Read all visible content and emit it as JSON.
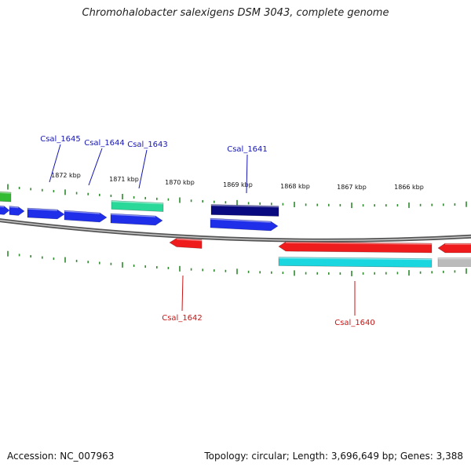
{
  "header": {
    "title": "Chromohalobacter salexigens DSM 3043, complete genome"
  },
  "footer": {
    "accession": "Accession: NC_007963",
    "summary": "Topology: circular; Length: 3,696,649 bp; Genes: 3,388"
  },
  "colors": {
    "backbone": "#8a8a8a",
    "tick": "#2e8b2e",
    "forward_cds": "#1f2ee8",
    "reverse_cds": "#ee1c1c",
    "rna": "#2ad99a",
    "dark_cds": "#0a0a80",
    "green_cds": "#33bb33",
    "cyan_cds": "#19d6df",
    "grey_cds": "#bbbbbb",
    "fwd_label": "#1414b4",
    "rev_label": "#c81414"
  },
  "scale_labels": [
    "1872 kbp",
    "1871 kbp",
    "1870 kbp",
    "1869 kbp",
    "1868 kbp",
    "1867 kbp",
    "1866 kbp"
  ],
  "gene_labels": {
    "top": [
      "Csal_1645",
      "Csal_1644",
      "Csal_1643",
      "Csal_1641"
    ],
    "bottom": [
      "Csal_1642",
      "Csal_1640"
    ]
  }
}
